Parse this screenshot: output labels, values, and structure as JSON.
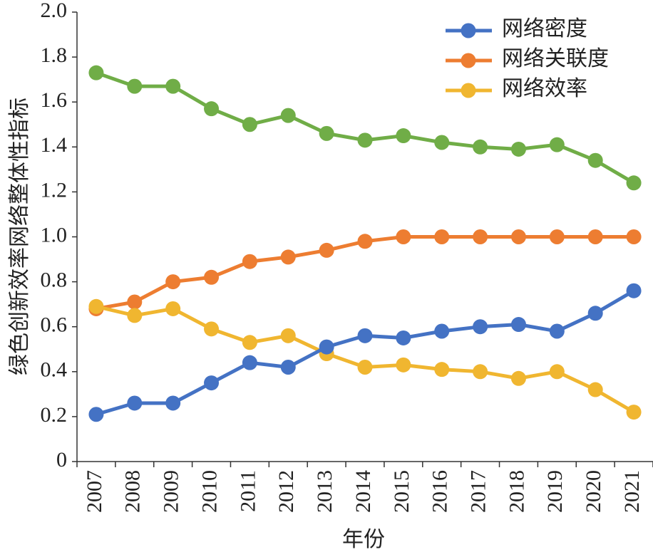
{
  "chart_data": {
    "type": "line",
    "x_label": "年份",
    "y_label": "绿色创新效率网络整体性指标",
    "categories": [
      "2007",
      "2008",
      "2009",
      "2010",
      "2011",
      "2012",
      "2013",
      "2014",
      "2015",
      "2016",
      "2017",
      "2018",
      "2019",
      "2020",
      "2021"
    ],
    "series": [
      {
        "color": "#70ad47",
        "values": [
          1.73,
          1.67,
          1.67,
          1.57,
          1.5,
          1.54,
          1.46,
          1.43,
          1.45,
          1.42,
          1.4,
          1.39,
          1.41,
          1.34,
          1.24
        ]
      },
      {
        "name": "网络关联度",
        "color": "#ed7d31",
        "values": [
          0.68,
          0.71,
          0.8,
          0.82,
          0.89,
          0.91,
          0.94,
          0.98,
          1.0,
          1.0,
          1.0,
          1.0,
          1.0,
          1.0,
          1.0
        ]
      },
      {
        "name": "网络效率",
        "color": "#f0b630",
        "values": [
          0.69,
          0.65,
          0.68,
          0.59,
          0.53,
          0.56,
          0.48,
          0.42,
          0.43,
          0.41,
          0.4,
          0.37,
          0.4,
          0.32,
          0.22
        ]
      },
      {
        "name": "网络密度",
        "color": "#4472c4",
        "values": [
          0.21,
          0.26,
          0.26,
          0.35,
          0.44,
          0.42,
          0.51,
          0.56,
          0.55,
          0.58,
          0.6,
          0.61,
          0.58,
          0.66,
          0.76
        ]
      }
    ],
    "legend_order": [
      3,
      1,
      2
    ],
    "ylim": [
      0,
      2
    ],
    "yticks": [
      0,
      0.2,
      0.4,
      0.6,
      0.8,
      {
        "value": 1,
        "label": "1.0"
      },
      1.2,
      1.4,
      1.6,
      1.8,
      {
        "value": 2,
        "label": "2.0"
      }
    ]
  }
}
